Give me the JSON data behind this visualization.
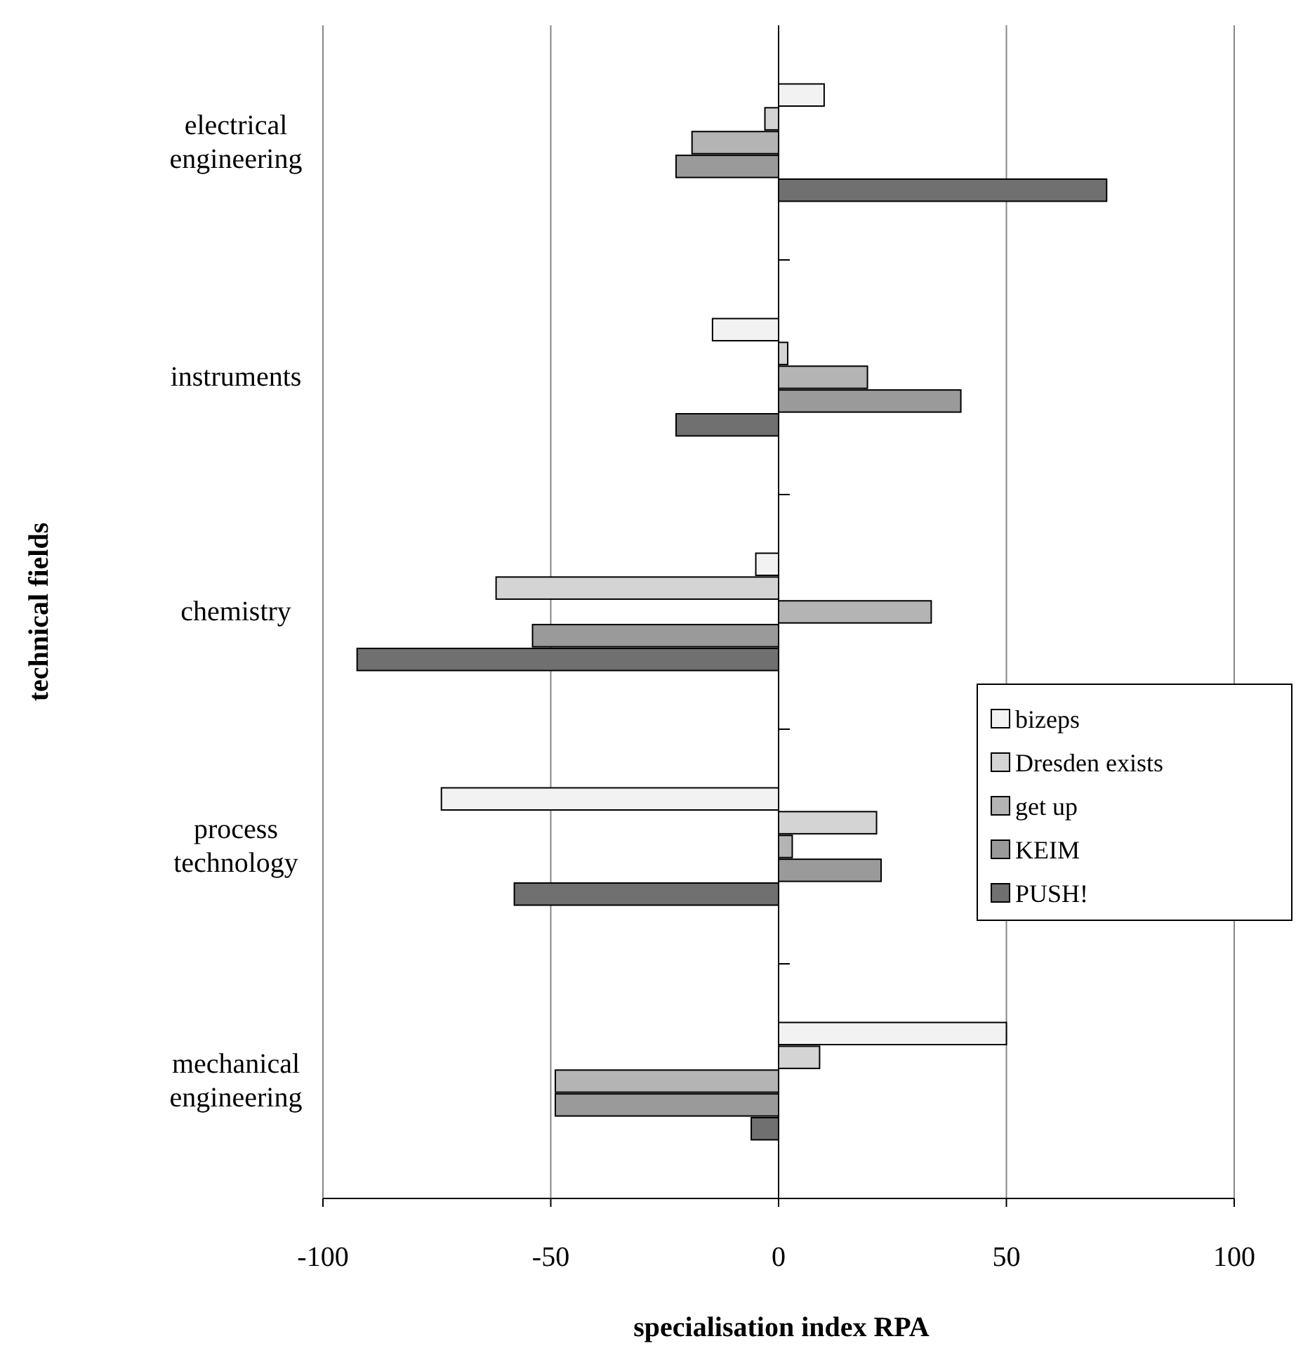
{
  "chart_data": {
    "type": "bar",
    "orientation": "horizontal",
    "xlabel": "specialisation index RPA",
    "ylabel": "technical fields",
    "categories": [
      "electrical engineering",
      "instruments",
      "chemistry",
      "process technology",
      "mechanical engineering"
    ],
    "xlim": [
      -100,
      100
    ],
    "xticks": [
      -100,
      -50,
      0,
      50,
      100
    ],
    "grid": "x",
    "legend": "right",
    "series": [
      {
        "name": "bizeps",
        "color": "#f2f2f2",
        "values": [
          10,
          -14.5,
          -5,
          -74,
          50
        ]
      },
      {
        "name": "Dresden exists",
        "color": "#d4d4d4",
        "values": [
          -3,
          2,
          -62,
          21.5,
          9
        ]
      },
      {
        "name": "get up",
        "color": "#b4b4b4",
        "values": [
          -19,
          19.5,
          33.5,
          3,
          -49
        ]
      },
      {
        "name": "KEIM",
        "color": "#9a9a9a",
        "values": [
          -22.5,
          40,
          -54,
          22.5,
          -49
        ]
      },
      {
        "name": "PUSH!",
        "color": "#707070",
        "values": [
          72,
          -22.5,
          -92.5,
          -58,
          -6
        ]
      }
    ]
  }
}
